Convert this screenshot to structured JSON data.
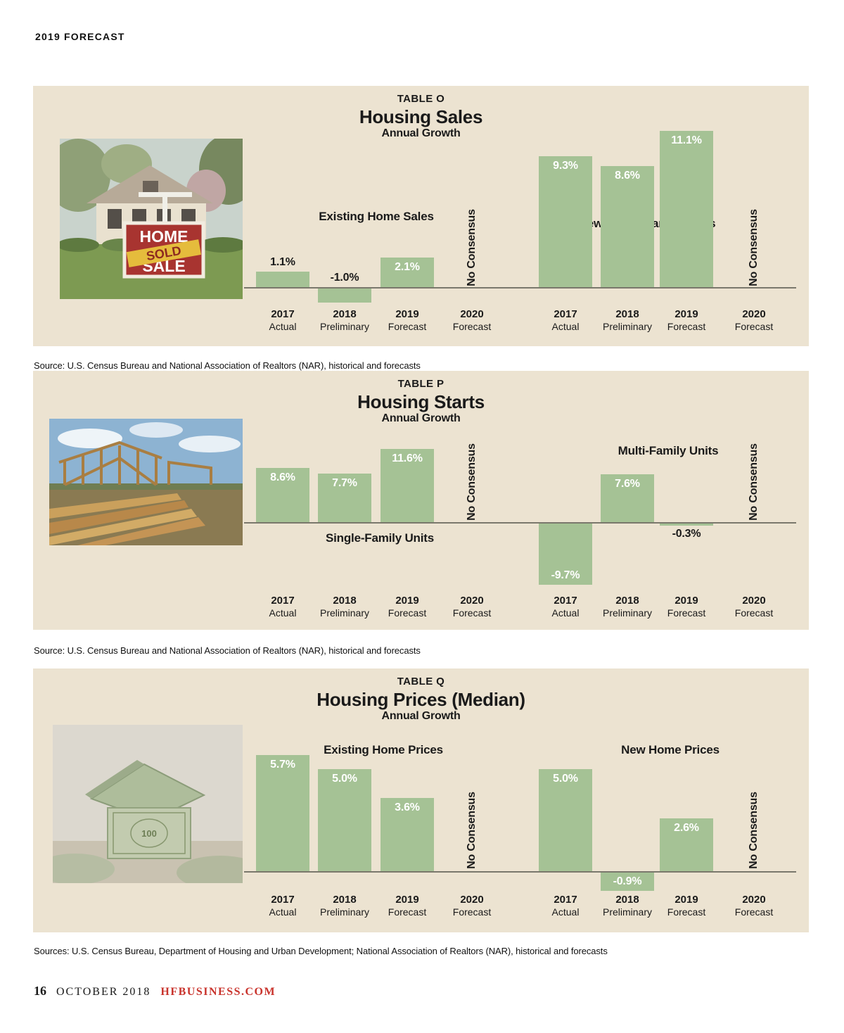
{
  "page": {
    "kicker": "2019 FORECAST",
    "footer": {
      "page_number": "16",
      "issue": "OCTOBER 2018",
      "site": "HFBUSINESS.COM"
    }
  },
  "colors": {
    "panel_bg": "#ece3d1",
    "bar_green": "#a5c295",
    "accent_red": "#c9342d"
  },
  "axis": {
    "years": [
      "2017",
      "2018",
      "2019",
      "2020"
    ],
    "sublabels": [
      "Actual",
      "Preliminary",
      "Forecast",
      "Forecast"
    ]
  },
  "no_consensus": "No Consensus",
  "photos": [
    {
      "name": "home-sold-sign-photo",
      "sign_top": "HOME",
      "sign_banner": "SOLD",
      "sign_bottom": "SALE"
    },
    {
      "name": "house-framing-photo"
    },
    {
      "name": "money-house-photo",
      "bill_number": "100"
    }
  ],
  "chart_data": [
    {
      "type": "bar",
      "table_id": "TABLE O",
      "title": "Housing Sales",
      "subtitle": "Annual Growth",
      "source": "Source:  U.S. Census Bureau and National Association of Realtors (NAR), historical and forecasts",
      "categories": [
        "2017 Actual",
        "2018 Preliminary",
        "2019 Forecast",
        "2020 Forecast"
      ],
      "ylim": [
        -2,
        12
      ],
      "series": [
        {
          "name": "Existing Home Sales",
          "values": [
            1.1,
            -1.0,
            2.1,
            null
          ],
          "value_labels": [
            "1.1%",
            "-1.0%",
            "2.1%",
            null
          ]
        },
        {
          "name": "New Single-Family Sales",
          "values": [
            9.3,
            8.6,
            11.1,
            null
          ],
          "value_labels": [
            "9.3%",
            "8.6%",
            "11.1%",
            null
          ]
        }
      ]
    },
    {
      "type": "bar",
      "table_id": "TABLE P",
      "title": "Housing Starts",
      "subtitle": "Annual Growth",
      "source": "Source:  U.S. Census Bureau and National Association of Realtors (NAR), historical and forecasts",
      "categories": [
        "2017 Actual",
        "2018 Preliminary",
        "2019 Forecast",
        "2020 Forecast"
      ],
      "ylim": [
        -11,
        13
      ],
      "series": [
        {
          "name": "Single-Family Units",
          "values": [
            8.6,
            7.7,
            11.6,
            null
          ],
          "value_labels": [
            "8.6%",
            "7.7%",
            "11.6%",
            null
          ]
        },
        {
          "name": "Multi-Family Units",
          "values": [
            -9.7,
            7.6,
            -0.3,
            null
          ],
          "value_labels": [
            "-9.7%",
            "7.6%",
            "-0.3%",
            null
          ]
        }
      ]
    },
    {
      "type": "bar",
      "table_id": "TABLE Q",
      "title": "Housing Prices (Median)",
      "subtitle": "Annual Growth",
      "source": "Sources: U.S. Census Bureau, Department of Housing and Urban Development; National Association of Realtors (NAR), historical and forecasts",
      "categories": [
        "2017 Actual",
        "2018 Preliminary",
        "2019 Forecast",
        "2020 Forecast"
      ],
      "ylim": [
        -2,
        6
      ],
      "series": [
        {
          "name": "Existing Home Prices",
          "values": [
            5.7,
            5.0,
            3.6,
            null
          ],
          "value_labels": [
            "5.7%",
            "5.0%",
            "3.6%",
            null
          ]
        },
        {
          "name": "New Home Prices",
          "values": [
            5.0,
            -0.9,
            2.6,
            null
          ],
          "value_labels": [
            "5.0%",
            "-0.9%",
            "2.6%",
            null
          ]
        }
      ]
    }
  ]
}
